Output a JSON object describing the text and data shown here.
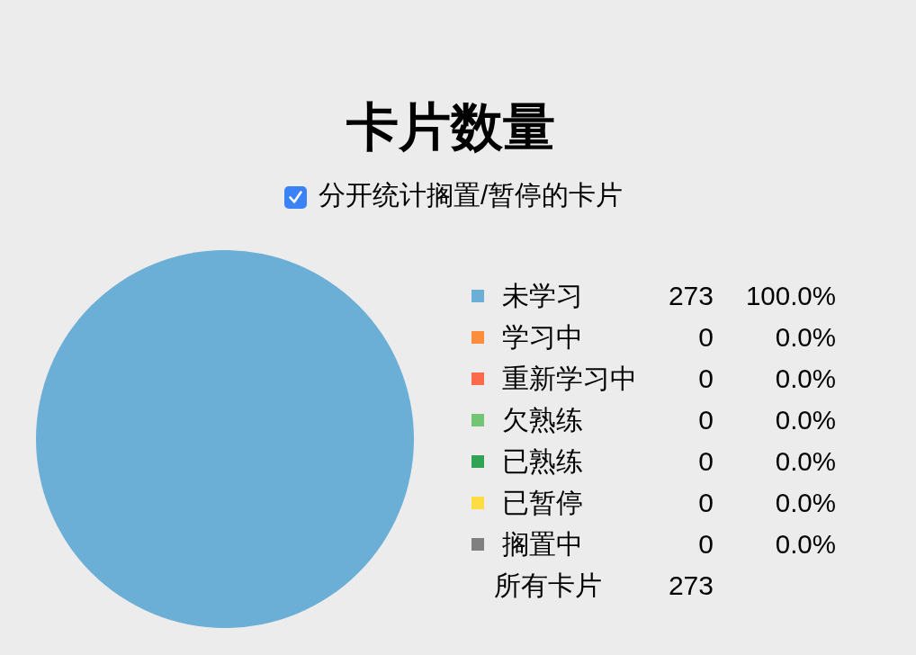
{
  "chart_data": {
    "type": "pie",
    "title": "卡片数量",
    "annotations": [
      "分开统计搁置/暂停的卡片",
      "所有卡片",
      "100.0%",
      "0.0%",
      "0.0%",
      "0.0%",
      "0.0%",
      "0.0%",
      "0.0%"
    ],
    "categories": [
      "未学习",
      "学习中",
      "重新学习中",
      "欠熟练",
      "已熟练",
      "已暂停",
      "搁置中"
    ],
    "values": [
      273,
      0,
      0,
      0,
      0,
      0,
      0
    ],
    "value_labels": [
      "273",
      "0",
      "0",
      "0",
      "0",
      "0",
      "0"
    ],
    "colors": [
      "#6baed6",
      "#fd8d3c",
      "#fb6a4a",
      "#74c476",
      "#31a354",
      "#ffdc41",
      "#808080"
    ],
    "totals": [
      "273"
    ],
    "legend": "right"
  }
}
